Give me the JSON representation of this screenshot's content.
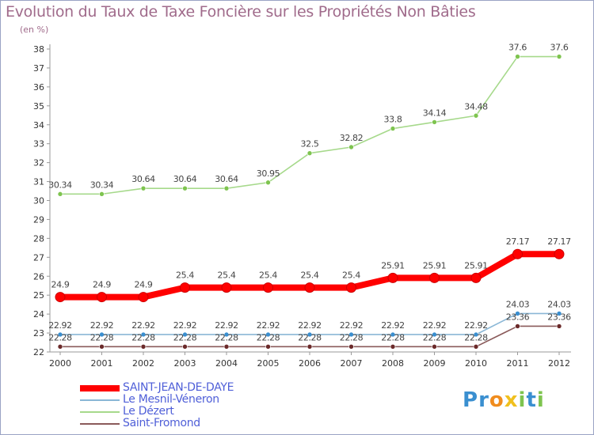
{
  "title": "Evolution du Taux de Taxe Foncière sur les Propriétés Non Bâties",
  "unit": "(en %)",
  "chart_data": {
    "type": "line",
    "title": "Evolution du Taux de Taxe Foncière sur les Propriétés Non Bâties",
    "ylabel": "(en %)",
    "xlabel": "",
    "ylim": [
      22,
      38
    ],
    "yticks": [
      22,
      23,
      24,
      25,
      26,
      27,
      28,
      29,
      30,
      31,
      32,
      33,
      34,
      35,
      36,
      37,
      38
    ],
    "grid": false,
    "categories": [
      "2000",
      "2001",
      "2002",
      "2003",
      "2004",
      "2005",
      "2006",
      "2007",
      "2008",
      "2009",
      "2010",
      "2011",
      "2012"
    ],
    "series": [
      {
        "name": "Le Dézert",
        "color": "#a6d98b",
        "marker": "#7ec44f",
        "values": [
          30.34,
          30.34,
          30.64,
          30.64,
          30.64,
          30.95,
          32.5,
          32.82,
          33.8,
          34.14,
          34.48,
          37.6,
          37.6
        ],
        "labels": [
          "30.34",
          "30.34",
          "30.64",
          "30.64",
          "30.64",
          "30.95",
          "32.5",
          "32.82",
          "33.8",
          "34.14",
          "34.48",
          "37.6",
          "37.6"
        ]
      },
      {
        "name": "SAINT-JEAN-DE-DAYE",
        "color": "#ff0000",
        "marker": "#ff0000",
        "values": [
          24.9,
          24.9,
          24.9,
          25.4,
          25.4,
          25.4,
          25.4,
          25.4,
          25.91,
          25.91,
          25.91,
          27.17,
          27.17
        ],
        "labels": [
          "24.9",
          "24.9",
          "24.9",
          "25.4",
          "25.4",
          "25.4",
          "25.4",
          "25.4",
          "25.91",
          "25.91",
          "25.91",
          "27.17",
          "27.17"
        ]
      },
      {
        "name": "Le Mesnil-Véneron",
        "color": "#8ab7d6",
        "marker": "#3a8fd0",
        "values": [
          22.92,
          22.92,
          22.92,
          22.92,
          22.92,
          22.92,
          22.92,
          22.92,
          22.92,
          22.92,
          22.92,
          24.03,
          24.03
        ],
        "labels": [
          "22.92",
          "22.92",
          "22.92",
          "22.92",
          "22.92",
          "22.92",
          "22.92",
          "22.92",
          "22.92",
          "22.92",
          "22.92",
          "24.03",
          "24.03"
        ]
      },
      {
        "name": "Saint-Fromond",
        "color": "#8a5a5a",
        "marker": "#6b2a2a",
        "values": [
          22.28,
          22.28,
          22.28,
          22.28,
          22.28,
          22.28,
          22.28,
          22.28,
          22.28,
          22.28,
          22.28,
          23.36,
          23.36
        ],
        "labels": [
          "22.28",
          "22.28",
          "22.28",
          "22.28",
          "22.28",
          "22.28",
          "22.28",
          "22.28",
          "22.28",
          "22.28",
          "22.28",
          "23.36",
          "23.36"
        ]
      }
    ]
  },
  "legend": [
    {
      "label": "SAINT-JEAN-DE-DAYE",
      "color": "#ff0000"
    },
    {
      "label": "Le Mesnil-Véneron",
      "color": "#8ab7d6"
    },
    {
      "label": "Le Dézert",
      "color": "#a6d98b"
    },
    {
      "label": "Saint-Fromond",
      "color": "#8a5a5a"
    }
  ],
  "logo": {
    "text": "Proxiti",
    "letters": [
      "P",
      "r",
      "o",
      "x",
      "i",
      "t",
      "i"
    ],
    "colors": [
      "#3a8fd0",
      "#3a8fd0",
      "#f08c1e",
      "#f0c01e",
      "#7ec44f",
      "#3a8fd0",
      "#7ec44f"
    ]
  }
}
